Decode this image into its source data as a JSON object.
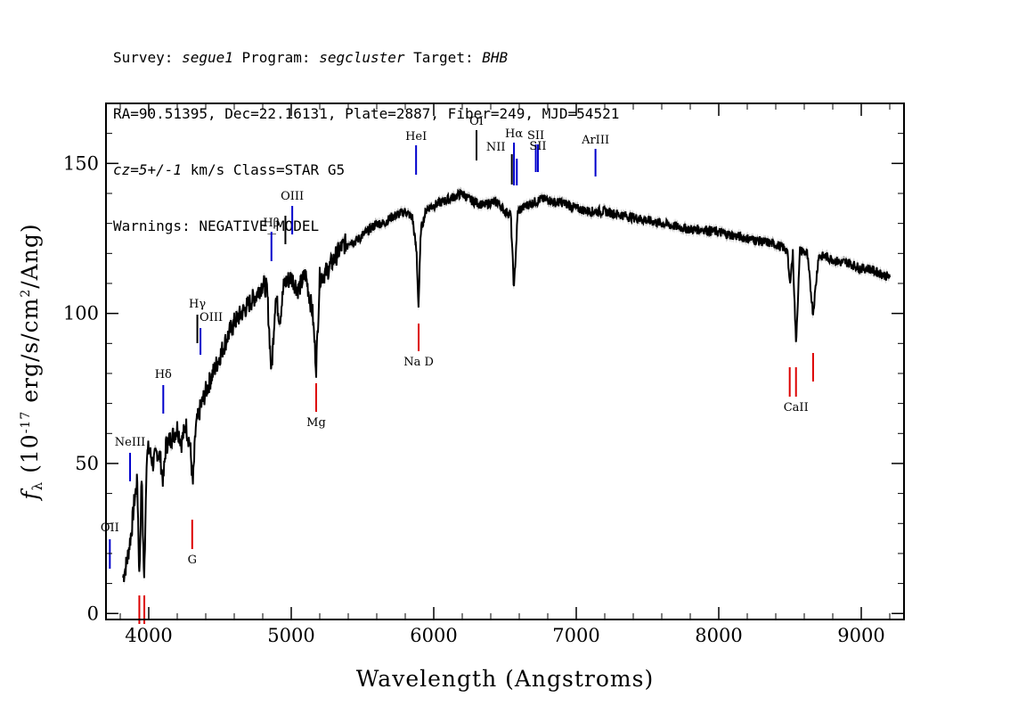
{
  "header": {
    "line1": {
      "survey_label": "Survey: ",
      "survey": "segue1",
      "program_label": " Program: ",
      "program": "segcluster",
      "target_label": " Target: ",
      "target": "BHB"
    },
    "line2": "RA=90.51395, Dec=22.16131, Plate=2887, Fiber=249, MJD=54521",
    "line3": {
      "cz": "cz=5+/-1",
      "rest": " km/s Class=STAR G5"
    },
    "line4": "Warnings: NEGATIVE_MODEL"
  },
  "chart_data": {
    "type": "line",
    "xlabel": "Wavelength (Angstroms)",
    "ylabel": "f_λ (10^-17 erg/s/cm^2/Ang)",
    "xlim": [
      3700,
      9300
    ],
    "ylim": [
      -2,
      170
    ],
    "x_ticks": [
      4000,
      5000,
      6000,
      7000,
      8000,
      9000
    ],
    "y_ticks": [
      0,
      50,
      100,
      150
    ],
    "x_tick_labels": [
      "4000",
      "5000",
      "6000",
      "7000",
      "8000",
      "9000"
    ],
    "y_tick_labels": [
      "0",
      "50",
      "100",
      "150"
    ],
    "colors": {
      "spectrum": "#000000",
      "error_band": "#b8b8b8",
      "emission": "#0000cc",
      "absorption": "#dd0000"
    },
    "series": [
      {
        "x": [
          3820,
          3850,
          3880,
          3900,
          3920,
          3934,
          3950,
          3968,
          3985,
          4000,
          4030,
          4060,
          4080,
          4102,
          4120,
          4150,
          4180,
          4200,
          4230,
          4260,
          4290,
          4310,
          4330,
          4360,
          4400,
          4450,
          4500,
          4550,
          4600,
          4650,
          4700,
          4750,
          4800,
          4830,
          4861,
          4890,
          4920,
          4950,
          5000,
          5050,
          5100,
          5150,
          5175,
          5200,
          5250,
          5300,
          5350,
          5400,
          5450,
          5500,
          5550,
          5600,
          5650,
          5700,
          5750,
          5800,
          5850,
          5880,
          5893,
          5910,
          5950,
          6000,
          6050,
          6100,
          6150,
          6200,
          6250,
          6300,
          6350,
          6400,
          6450,
          6500,
          6540,
          6563,
          6590,
          6650,
          6700,
          6750,
          6800,
          6850,
          6900,
          6950,
          7000,
          7100,
          7200,
          7300,
          7400,
          7500,
          7600,
          7700,
          7800,
          7900,
          8000,
          8100,
          8200,
          8300,
          8400,
          8450,
          8480,
          8498,
          8520,
          8542,
          8570,
          8620,
          8662,
          8700,
          8750,
          8800,
          8850,
          8900,
          8950,
          9000,
          9050,
          9100,
          9150,
          9200
        ],
        "y": [
          12,
          18,
          28,
          38,
          44,
          12,
          46,
          10,
          52,
          55,
          50,
          54,
          52,
          44,
          56,
          58,
          60,
          62,
          57,
          63,
          56,
          43,
          62,
          68,
          74,
          80,
          86,
          92,
          97,
          100,
          103,
          106,
          110,
          108,
          80,
          106,
          98,
          110,
          112,
          108,
          113,
          100,
          82,
          112,
          114,
          118,
          122,
          124,
          124,
          126,
          128,
          130,
          130,
          132,
          133,
          134,
          132,
          120,
          102,
          128,
          135,
          136,
          137,
          138,
          139,
          140,
          138,
          137,
          136,
          137,
          137,
          134,
          133,
          108,
          134,
          136,
          137,
          138,
          138,
          137,
          137,
          136,
          135,
          134,
          134,
          133,
          132,
          131,
          130,
          129,
          128,
          128,
          127,
          126,
          125,
          124,
          123,
          122,
          121,
          110,
          120,
          90,
          121,
          120,
          100,
          119,
          119,
          118,
          117,
          117,
          116,
          115,
          115,
          114,
          113,
          112
        ]
      }
    ],
    "emission_lines": [
      {
        "label": "OII",
        "x": 3727
      },
      {
        "label": "NeIII",
        "x": 3869
      },
      {
        "label": "Hδ",
        "x": 4102
      },
      {
        "label": "Hγ",
        "x": 4341
      },
      {
        "label": "OIII",
        "x": 4363
      },
      {
        "label": "Hβ",
        "x": 4861
      },
      {
        "label": "OIII",
        "x": 4959
      },
      {
        "label": "OIII",
        "x": 5007
      },
      {
        "label": "HeI",
        "x": 5876
      },
      {
        "label": "OI",
        "x": 6300
      },
      {
        "label": "NII",
        "x": 6548
      },
      {
        "label": "Hα",
        "x": 6563
      },
      {
        "label": "NII",
        "x": 6583
      },
      {
        "label": "SII",
        "x": 6716
      },
      {
        "label": "SII",
        "x": 6731
      },
      {
        "label": "ArIII",
        "x": 7135
      }
    ],
    "absorption_lines": [
      {
        "label": "",
        "x": 3934
      },
      {
        "label": "",
        "x": 3969
      },
      {
        "label": "G",
        "x": 4305
      },
      {
        "label": "Mg",
        "x": 5175
      },
      {
        "label": "Na D",
        "x": 5894
      },
      {
        "label": "",
        "x": 8498
      },
      {
        "label": "CaII",
        "x": 8542
      },
      {
        "label": "",
        "x": 8662
      }
    ]
  }
}
